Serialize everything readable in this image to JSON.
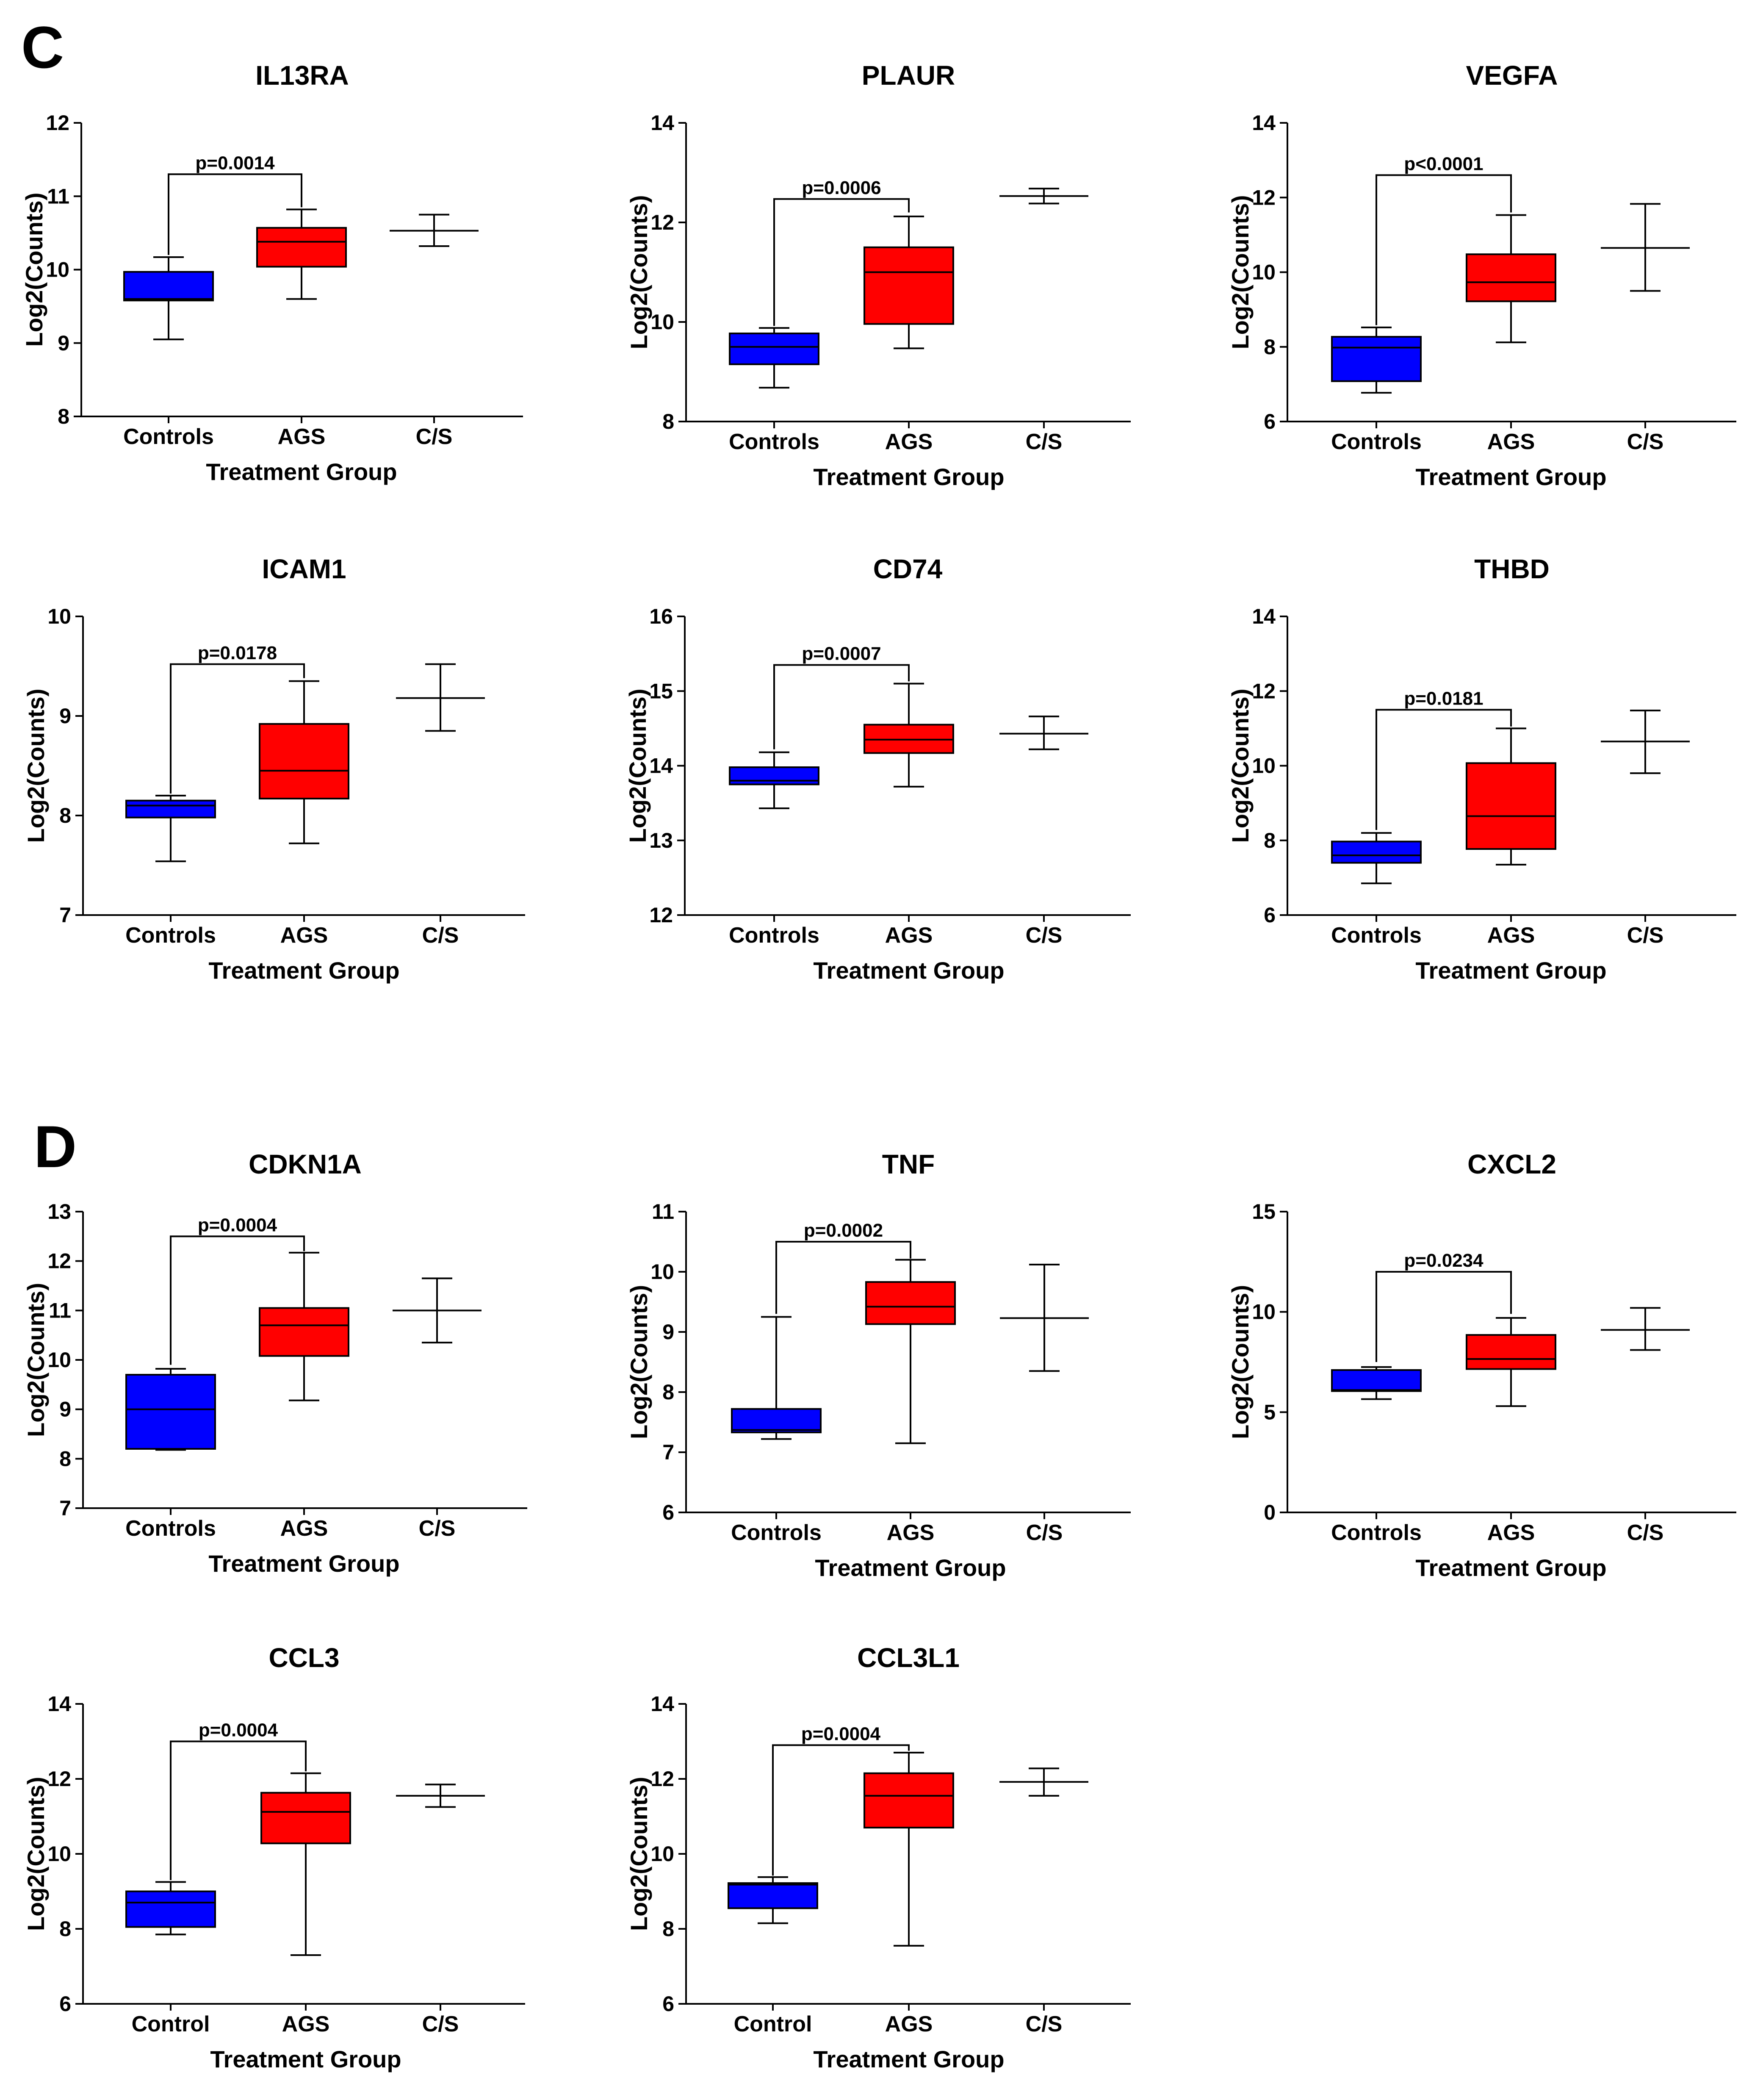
{
  "panels": [
    {
      "letter": "C",
      "anchor_chart": 0
    },
    {
      "letter": "D",
      "anchor_chart": 6
    }
  ],
  "colors": {
    "controls": "#0000ff",
    "ags": "#ff0000",
    "line": "#000000"
  },
  "chart_data": [
    {
      "type": "box",
      "title": "IL13RA",
      "xlabel": "Treatment Group",
      "ylabel": "Log2(Counts)",
      "ylim": [
        8,
        12
      ],
      "yticks": [
        8,
        9,
        10,
        11,
        12
      ],
      "categories": [
        "Controls",
        "AGS",
        "C/S"
      ],
      "boxes": [
        {
          "kind": "box",
          "color": "controls",
          "min": 9.05,
          "q1": 9.58,
          "median": 9.6,
          "q3": 9.97,
          "max": 10.17
        },
        {
          "kind": "box",
          "color": "ags",
          "min": 9.6,
          "q1": 10.04,
          "median": 10.38,
          "q3": 10.57,
          "max": 10.82
        },
        {
          "kind": "cap",
          "mean": 10.53,
          "low": 10.32,
          "high": 10.75
        }
      ],
      "significance": {
        "label": "p=0.0014",
        "from": 0,
        "to": 1,
        "y": 11.3,
        "left_drop": 10.2,
        "right_drop": 10.85
      }
    },
    {
      "type": "box",
      "title": "PLAUR",
      "xlabel": "Treatment Group",
      "ylabel": "Log2(Counts)",
      "ylim": [
        8,
        14
      ],
      "yticks": [
        8,
        10,
        12,
        14
      ],
      "categories": [
        "Controls",
        "AGS",
        "C/S"
      ],
      "boxes": [
        {
          "kind": "box",
          "color": "controls",
          "min": 8.68,
          "q1": 9.15,
          "median": 9.5,
          "q3": 9.77,
          "max": 9.88
        },
        {
          "kind": "box",
          "color": "ags",
          "min": 9.47,
          "q1": 9.96,
          "median": 11.0,
          "q3": 11.5,
          "max": 12.12
        },
        {
          "kind": "cap",
          "mean": 12.53,
          "low": 12.38,
          "high": 12.68
        }
      ],
      "significance": {
        "label": "p=0.0006",
        "from": 0,
        "to": 1,
        "y": 12.47,
        "left_drop": 9.92,
        "right_drop": 12.2
      }
    },
    {
      "type": "box",
      "title": "VEGFA",
      "xlabel": "Treatment Group",
      "ylabel": "Log2(Counts)",
      "ylim": [
        6,
        14
      ],
      "yticks": [
        6,
        8,
        10,
        12,
        14
      ],
      "categories": [
        "Controls",
        "AGS",
        "C/S"
      ],
      "boxes": [
        {
          "kind": "box",
          "color": "controls",
          "min": 6.77,
          "q1": 7.08,
          "median": 7.98,
          "q3": 8.27,
          "max": 8.52
        },
        {
          "kind": "box",
          "color": "ags",
          "min": 8.12,
          "q1": 9.22,
          "median": 9.73,
          "q3": 10.48,
          "max": 11.53
        },
        {
          "kind": "cap",
          "mean": 10.65,
          "low": 9.5,
          "high": 11.83
        }
      ],
      "significance": {
        "label": "p<0.0001",
        "from": 0,
        "to": 1,
        "y": 12.6,
        "left_drop": 8.58,
        "right_drop": 11.6
      }
    },
    {
      "type": "box",
      "title": "ICAM1",
      "xlabel": "Treatment Group",
      "ylabel": "Log2(Counts)",
      "ylim": [
        7,
        10
      ],
      "yticks": [
        7,
        8,
        9,
        10
      ],
      "categories": [
        "Controls",
        "AGS",
        "C/S"
      ],
      "boxes": [
        {
          "kind": "box",
          "color": "controls",
          "min": 7.54,
          "q1": 7.98,
          "median": 8.1,
          "q3": 8.15,
          "max": 8.2
        },
        {
          "kind": "box",
          "color": "ags",
          "min": 7.72,
          "q1": 8.17,
          "median": 8.45,
          "q3": 8.92,
          "max": 9.35
        },
        {
          "kind": "cap",
          "mean": 9.18,
          "low": 8.85,
          "high": 9.52
        }
      ],
      "significance": {
        "label": "p=0.0178",
        "from": 0,
        "to": 1,
        "y": 9.52,
        "left_drop": 8.22,
        "right_drop": 9.38
      }
    },
    {
      "type": "box",
      "title": "CD74",
      "xlabel": "Treatment Group",
      "ylabel": "Log2(Counts)",
      "ylim": [
        12,
        16
      ],
      "yticks": [
        12,
        13,
        14,
        15,
        16
      ],
      "categories": [
        "Controls",
        "AGS",
        "C/S"
      ],
      "boxes": [
        {
          "kind": "box",
          "color": "controls",
          "min": 13.43,
          "q1": 13.75,
          "median": 13.8,
          "q3": 13.98,
          "max": 14.18
        },
        {
          "kind": "box",
          "color": "ags",
          "min": 13.72,
          "q1": 14.17,
          "median": 14.35,
          "q3": 14.55,
          "max": 15.1
        },
        {
          "kind": "cap",
          "mean": 14.43,
          "low": 14.22,
          "high": 14.66
        }
      ],
      "significance": {
        "label": "p=0.0007",
        "from": 0,
        "to": 1,
        "y": 15.35,
        "left_drop": 14.22,
        "right_drop": 15.13
      }
    },
    {
      "type": "box",
      "title": "THBD",
      "xlabel": "Treatment Group",
      "ylabel": "Log2(Counts)",
      "ylim": [
        6,
        14
      ],
      "yticks": [
        6,
        8,
        10,
        12,
        14
      ],
      "categories": [
        "Controls",
        "AGS",
        "C/S"
      ],
      "boxes": [
        {
          "kind": "box",
          "color": "controls",
          "min": 6.85,
          "q1": 7.4,
          "median": 7.6,
          "q3": 7.97,
          "max": 8.2
        },
        {
          "kind": "box",
          "color": "ags",
          "min": 7.35,
          "q1": 7.77,
          "median": 8.65,
          "q3": 10.07,
          "max": 11.0
        },
        {
          "kind": "cap",
          "mean": 10.65,
          "low": 9.8,
          "high": 11.48
        }
      ],
      "significance": {
        "label": "p=0.0181",
        "from": 0,
        "to": 1,
        "y": 11.5,
        "left_drop": 8.28,
        "right_drop": 11.05
      }
    },
    {
      "type": "box",
      "title": "CDKN1A",
      "xlabel": "Treatment Group",
      "ylabel": "Log2(Counts)",
      "ylim": [
        7,
        13
      ],
      "yticks": [
        7,
        8,
        9,
        10,
        11,
        12,
        13
      ],
      "categories": [
        "Controls",
        "AGS",
        "C/S"
      ],
      "boxes": [
        {
          "kind": "box",
          "color": "controls",
          "min": 8.18,
          "q1": 8.2,
          "median": 9.0,
          "q3": 9.7,
          "max": 9.82
        },
        {
          "kind": "box",
          "color": "ags",
          "min": 9.18,
          "q1": 10.08,
          "median": 10.7,
          "q3": 11.05,
          "max": 12.17
        },
        {
          "kind": "cap",
          "mean": 11.0,
          "low": 10.35,
          "high": 11.65
        }
      ],
      "significance": {
        "label": "p=0.0004",
        "from": 0,
        "to": 1,
        "y": 12.5,
        "left_drop": 9.9,
        "right_drop": 12.2
      }
    },
    {
      "type": "box",
      "title": "TNF",
      "xlabel": "Treatment Group",
      "ylabel": "Log2(Counts)",
      "ylim": [
        6,
        11
      ],
      "yticks": [
        6,
        7,
        8,
        9,
        10,
        11
      ],
      "categories": [
        "Controls",
        "AGS",
        "C/S"
      ],
      "boxes": [
        {
          "kind": "box",
          "color": "controls",
          "min": 7.22,
          "q1": 7.33,
          "median": 7.37,
          "q3": 7.72,
          "max": 9.25
        },
        {
          "kind": "box",
          "color": "ags",
          "min": 7.15,
          "q1": 9.13,
          "median": 9.42,
          "q3": 9.83,
          "max": 10.2
        },
        {
          "kind": "cap",
          "mean": 9.23,
          "low": 8.35,
          "high": 10.12
        }
      ],
      "significance": {
        "label": "p=0.0002",
        "from": 0,
        "to": 1,
        "y": 10.5,
        "left_drop": 9.3,
        "right_drop": 10.22
      }
    },
    {
      "type": "box",
      "title": "CXCL2",
      "xlabel": "Treatment Group",
      "ylabel": "Log2(Counts)",
      "ylim": [
        0,
        15
      ],
      "yticks": [
        0,
        5,
        10,
        15
      ],
      "categories": [
        "Controls",
        "AGS",
        "C/S"
      ],
      "boxes": [
        {
          "kind": "box",
          "color": "controls",
          "min": 5.65,
          "q1": 6.05,
          "median": 6.1,
          "q3": 7.1,
          "max": 7.25
        },
        {
          "kind": "box",
          "color": "ags",
          "min": 5.3,
          "q1": 7.15,
          "median": 7.65,
          "q3": 8.85,
          "max": 9.7
        },
        {
          "kind": "cap",
          "mean": 9.1,
          "low": 8.1,
          "high": 10.2
        }
      ],
      "significance": {
        "label": "p=0.0234",
        "from": 0,
        "to": 1,
        "y": 12.0,
        "left_drop": 7.5,
        "right_drop": 9.9
      }
    },
    {
      "type": "box",
      "title": "CCL3",
      "xlabel": "Treatment Group",
      "ylabel": "Log2(Counts)",
      "ylim": [
        6,
        14
      ],
      "yticks": [
        6,
        8,
        10,
        12,
        14
      ],
      "categories": [
        "Control",
        "AGS",
        "C/S"
      ],
      "boxes": [
        {
          "kind": "box",
          "color": "controls",
          "min": 7.85,
          "q1": 8.05,
          "median": 8.7,
          "q3": 9.0,
          "max": 9.25
        },
        {
          "kind": "box",
          "color": "ags",
          "min": 7.3,
          "q1": 10.28,
          "median": 11.12,
          "q3": 11.63,
          "max": 12.15
        },
        {
          "kind": "cap",
          "mean": 11.55,
          "low": 11.25,
          "high": 11.85
        }
      ],
      "significance": {
        "label": "p=0.0004",
        "from": 0,
        "to": 1,
        "y": 13.0,
        "left_drop": 9.3,
        "right_drop": 12.2
      }
    },
    {
      "type": "box",
      "title": "CCL3L1",
      "xlabel": "Treatment Group",
      "ylabel": "Log2(Counts)",
      "ylim": [
        6,
        14
      ],
      "yticks": [
        6,
        8,
        10,
        12,
        14
      ],
      "categories": [
        "Control",
        "AGS",
        "C/S"
      ],
      "boxes": [
        {
          "kind": "box",
          "color": "controls",
          "min": 8.15,
          "q1": 8.55,
          "median": 9.18,
          "q3": 9.22,
          "max": 9.38
        },
        {
          "kind": "box",
          "color": "ags",
          "min": 7.55,
          "q1": 10.7,
          "median": 11.55,
          "q3": 12.15,
          "max": 12.7
        },
        {
          "kind": "cap",
          "mean": 11.92,
          "low": 11.55,
          "high": 12.28
        }
      ],
      "significance": {
        "label": "p=0.0004",
        "from": 0,
        "to": 1,
        "y": 12.9,
        "left_drop": 9.42,
        "right_drop": 12.75
      }
    }
  ]
}
